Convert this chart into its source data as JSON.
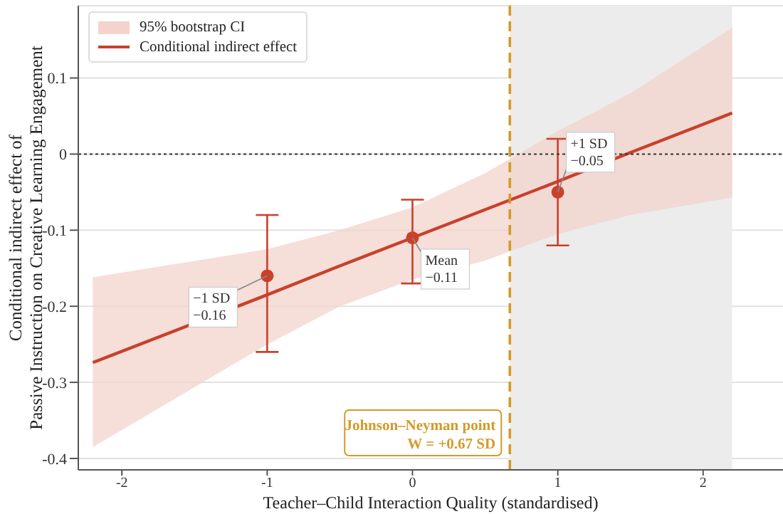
{
  "chart_data": {
    "type": "line",
    "xlabel": "Teacher–Child Interaction Quality (standardised)",
    "ylabel": "Conditional indirect effect of\nPassive Instruction on Creative Learning Engagement",
    "xlim": [
      -2.3,
      2.55
    ],
    "xticks": [
      -2,
      -1,
      0,
      1,
      2
    ],
    "ylim": [
      -0.415,
      0.195
    ],
    "yticks": [
      -0.4,
      -0.3,
      -0.2,
      -0.1,
      0,
      0.1
    ],
    "grid": "y",
    "legend": "top left",
    "series": [
      {
        "name": "Conditional indirect effect",
        "color": "#c8412b",
        "line_style": "solid",
        "x": [
          -2.2,
          -1,
          -0.5,
          0,
          0.5,
          1,
          1.5,
          2.2
        ],
        "values": [
          -0.274,
          -0.185,
          -0.147,
          -0.11,
          -0.073,
          -0.036,
          0.002,
          0.054
        ],
        "lower": [
          -0.385,
          -0.25,
          -0.2,
          -0.165,
          -0.14,
          -0.105,
          -0.08,
          -0.057
        ],
        "upper": [
          -0.162,
          -0.125,
          -0.1,
          -0.07,
          -0.025,
          0.03,
          0.08,
          0.166
        ]
      },
      {
        "type": "scatter",
        "color": "#c8412b",
        "marker": "circle",
        "x": [
          -1,
          0,
          1
        ],
        "values": [
          -0.16,
          -0.11,
          -0.05
        ],
        "errors": [
          [
            -0.26,
            -0.08
          ],
          [
            -0.17,
            -0.06
          ],
          [
            -0.12,
            0.02
          ]
        ]
      }
    ],
    "ref_lines": [
      {
        "axis": "y",
        "value": 0,
        "color": "#333333",
        "line_style": "dotted"
      },
      {
        "axis": "x",
        "value": 0.67,
        "label": "Johnson–Neyman point\nW = +0.67 SD",
        "color": "#d49a2a",
        "line_style": "dashed"
      }
    ],
    "bands": [
      {
        "axis": "x",
        "from": 0.67,
        "to": 2.2,
        "color": "#ececec"
      }
    ],
    "annotations": [
      "95% bootstrap CI",
      {
        "text": "−1 SD\n−0.16",
        "x": -1,
        "y": -0.16
      },
      {
        "text": "Mean\n−0.11",
        "x": 0,
        "y": -0.11
      },
      {
        "text": "+1 SD\n−0.05",
        "x": 1,
        "y": -0.05
      }
    ]
  }
}
